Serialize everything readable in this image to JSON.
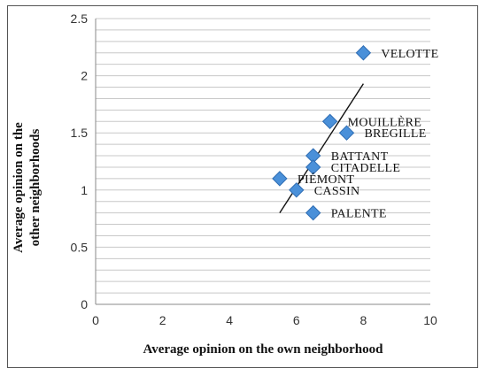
{
  "chart_data": {
    "type": "scatter",
    "xlabel": "Average opinion on the own neighborhood",
    "ylabel": "Average opinion on the other neighborhoods",
    "xlim": [
      0,
      10
    ],
    "ylim": [
      0,
      2.5
    ],
    "x_ticks": [
      "0",
      "2",
      "4",
      "6",
      "8",
      "10"
    ],
    "y_ticks": [
      "0",
      "0.5",
      "1",
      "1.5",
      "2",
      "2.5"
    ],
    "grid": "horizontal",
    "marker_color": "#4a90d9",
    "points": [
      {
        "label": "VELOTTE",
        "x": 8.0,
        "y": 2.2
      },
      {
        "label": "MOUILLÈRE",
        "x": 7.0,
        "y": 1.6
      },
      {
        "label": "BREGILLE",
        "x": 7.5,
        "y": 1.5
      },
      {
        "label": "BATTANT",
        "x": 6.5,
        "y": 1.3
      },
      {
        "label": "CITADELLE",
        "x": 6.5,
        "y": 1.2
      },
      {
        "label": "PIÉMONT",
        "x": 5.5,
        "y": 1.1
      },
      {
        "label": "CASSIN",
        "x": 6.0,
        "y": 1.0
      },
      {
        "label": "PALENTE",
        "x": 6.5,
        "y": 0.8
      }
    ],
    "trendline": {
      "x": [
        5.5,
        8.0
      ],
      "y": [
        0.8,
        1.93
      ]
    }
  }
}
